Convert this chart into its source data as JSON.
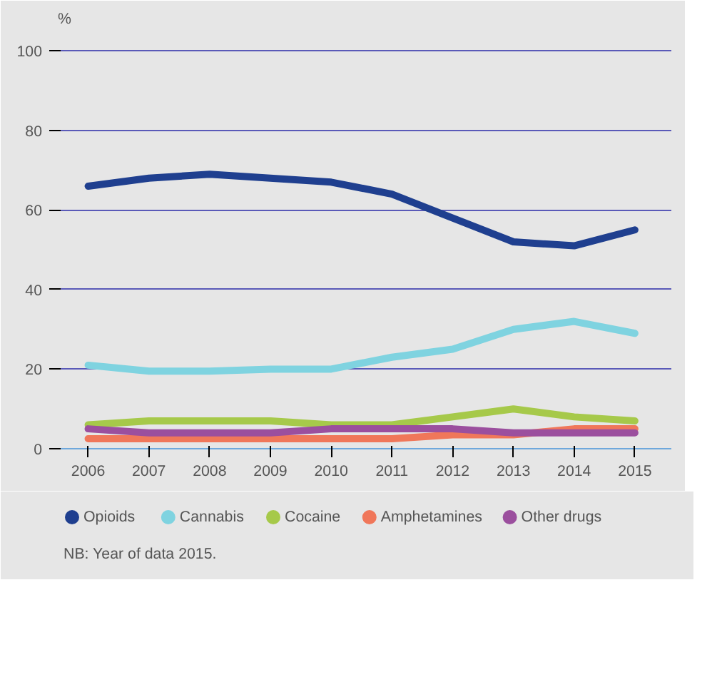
{
  "chart_data": {
    "type": "line",
    "ylabel": "%",
    "x": [
      2006,
      2007,
      2008,
      2009,
      2010,
      2011,
      2012,
      2013,
      2014,
      2015
    ],
    "xlim": [
      2005.5,
      2015.6
    ],
    "xticks": [
      2006,
      2007,
      2008,
      2009,
      2010,
      2011,
      2012,
      2013,
      2014,
      2015
    ],
    "ylim": [
      0,
      104
    ],
    "yticks": [
      0,
      20,
      40,
      60,
      80,
      100
    ],
    "grid": "y",
    "legend": "bottom",
    "marker": "none",
    "line_style": "solid",
    "series": [
      {
        "name": "Opioids",
        "color": "#1f3f8f",
        "values": [
          66,
          68,
          69,
          68,
          67,
          64,
          58,
          52,
          51,
          55
        ]
      },
      {
        "name": "Cannabis",
        "color": "#7fd3e0",
        "values": [
          21,
          19.5,
          19.5,
          20,
          20,
          23,
          25,
          30,
          32,
          29
        ]
      },
      {
        "name": "Cocaine",
        "color": "#a6c94a",
        "values": [
          6,
          7,
          7,
          7,
          6,
          6,
          8,
          10,
          8,
          7
        ]
      },
      {
        "name": "Amphetamines",
        "color": "#f0775a",
        "values": [
          2.5,
          2.5,
          2.5,
          2.5,
          2.5,
          2.5,
          3.5,
          3.5,
          5,
          5
        ]
      },
      {
        "name": "Other drugs",
        "color": "#9b4f9e",
        "values": [
          5,
          4,
          4,
          4,
          5,
          5,
          5,
          4,
          4,
          4
        ]
      }
    ],
    "annotations": [
      "NB: Year of data 2015."
    ]
  }
}
